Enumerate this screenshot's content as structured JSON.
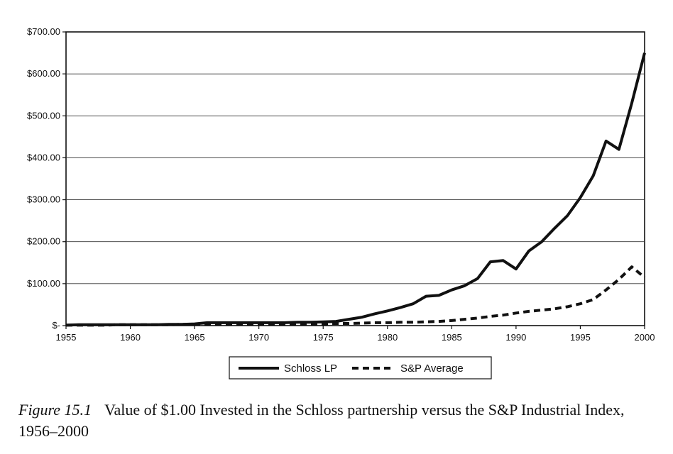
{
  "chart_data": {
    "type": "line",
    "x": [
      1955,
      1956,
      1957,
      1958,
      1959,
      1960,
      1961,
      1962,
      1963,
      1964,
      1965,
      1966,
      1967,
      1968,
      1969,
      1970,
      1971,
      1972,
      1973,
      1974,
      1975,
      1976,
      1977,
      1978,
      1979,
      1980,
      1981,
      1982,
      1983,
      1984,
      1985,
      1986,
      1987,
      1988,
      1989,
      1990,
      1991,
      1992,
      1993,
      1994,
      1995,
      1996,
      1997,
      1998,
      1999,
      2000
    ],
    "series": [
      {
        "name": "Schloss LP",
        "style": "solid",
        "values": [
          1,
          2,
          2,
          2,
          2,
          2,
          2,
          2,
          3,
          3,
          4,
          7,
          7,
          7,
          7,
          7,
          7,
          7,
          8,
          8,
          9,
          10,
          15,
          20,
          28,
          35,
          43,
          52,
          70,
          72,
          85,
          95,
          112,
          152,
          155,
          135,
          178,
          200,
          232,
          262,
          305,
          357,
          440,
          420,
          530,
          650
        ]
      },
      {
        "name": "S&P Average",
        "style": "dashed",
        "values": [
          1,
          1,
          1,
          1,
          2,
          2,
          2,
          2,
          2,
          3,
          3,
          3,
          3,
          3,
          3,
          3,
          4,
          4,
          4,
          4,
          4,
          5,
          5,
          6,
          7,
          7,
          8,
          8,
          9,
          10,
          12,
          15,
          18,
          22,
          25,
          30,
          34,
          37,
          40,
          45,
          52,
          62,
          85,
          110,
          140,
          115
        ]
      }
    ],
    "ylim": [
      0,
      700
    ],
    "yticks": [
      0,
      100,
      200,
      300,
      400,
      500,
      600,
      700
    ],
    "ytick_labels": [
      "$-",
      "$100.00",
      "$200.00",
      "$300.00",
      "$400.00",
      "$500.00",
      "$600.00",
      "$700.00"
    ],
    "xlim": [
      1955,
      2000
    ],
    "xticks": [
      1955,
      1960,
      1965,
      1970,
      1975,
      1980,
      1985,
      1990,
      1995,
      2000
    ],
    "xtick_labels": [
      "1955",
      "1960",
      "1965",
      "1970",
      "1975",
      "1980",
      "1985",
      "1990",
      "1995",
      "2000"
    ],
    "grid": true,
    "legend_position": "bottom-center",
    "title": "",
    "xlabel": "",
    "ylabel": ""
  },
  "legend": {
    "schloss_label": "Schloss LP",
    "sp_label": "S&P Average"
  },
  "caption": {
    "figure_label": "Figure 15.1",
    "text": "Value of $1.00 Invested in the Schloss partnership versus the S&P Industrial Index, 1956–2000"
  }
}
